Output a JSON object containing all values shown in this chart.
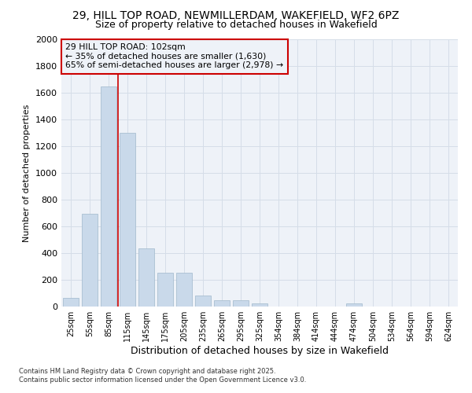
{
  "title_line1": "29, HILL TOP ROAD, NEWMILLERDAM, WAKEFIELD, WF2 6PZ",
  "title_line2": "Size of property relative to detached houses in Wakefield",
  "xlabel": "Distribution of detached houses by size in Wakefield",
  "ylabel": "Number of detached properties",
  "categories": [
    "25sqm",
    "55sqm",
    "85sqm",
    "115sqm",
    "145sqm",
    "175sqm",
    "205sqm",
    "235sqm",
    "265sqm",
    "295sqm",
    "325sqm",
    "354sqm",
    "384sqm",
    "414sqm",
    "444sqm",
    "474sqm",
    "504sqm",
    "534sqm",
    "564sqm",
    "594sqm",
    "624sqm"
  ],
  "values": [
    65,
    695,
    1650,
    1300,
    435,
    255,
    255,
    85,
    50,
    50,
    25,
    0,
    0,
    0,
    0,
    25,
    0,
    0,
    0,
    0,
    0
  ],
  "bar_color": "#c9d9ea",
  "bar_edge_color": "#a0b8cc",
  "grid_color": "#d5dde8",
  "vline_color": "#cc0000",
  "vline_x": 2.5,
  "annotation_title": "29 HILL TOP ROAD: 102sqm",
  "annotation_line1": "← 35% of detached houses are smaller (1,630)",
  "annotation_line2": "65% of semi-detached houses are larger (2,978) →",
  "annotation_box_color": "#cc0000",
  "ylim": [
    0,
    2000
  ],
  "yticks": [
    0,
    200,
    400,
    600,
    800,
    1000,
    1200,
    1400,
    1600,
    1800,
    2000
  ],
  "footer_line1": "Contains HM Land Registry data © Crown copyright and database right 2025.",
  "footer_line2": "Contains public sector information licensed under the Open Government Licence v3.0.",
  "bg_color": "#ffffff",
  "plot_bg_color": "#eef2f8"
}
